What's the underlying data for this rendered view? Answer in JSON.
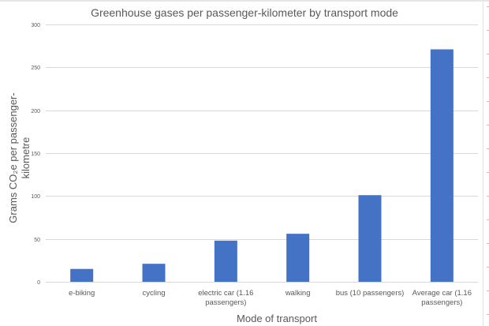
{
  "chart_data": {
    "type": "bar",
    "title": "Greenhouse gases per passenger-kilometer by transport mode",
    "xlabel": "Mode of transport",
    "ylabel_lines": [
      "Grams CO₂e per passenger-",
      "kilometre"
    ],
    "categories": [
      [
        "e-biking"
      ],
      [
        "cycling"
      ],
      [
        "electric car (1.16",
        "passengers)"
      ],
      [
        "walking"
      ],
      [
        "bus (10 passengers)"
      ],
      [
        "Average car (1.16",
        "passengers)"
      ]
    ],
    "values": [
      15,
      21,
      48,
      56,
      101,
      271
    ],
    "ylim": [
      0,
      300
    ],
    "yticks": [
      0,
      50,
      100,
      150,
      200,
      250,
      300
    ],
    "grid": true,
    "legend": "none",
    "bar_color": "#4472C4",
    "grid_color": "#d9d9d9",
    "text_color": "#595959"
  }
}
